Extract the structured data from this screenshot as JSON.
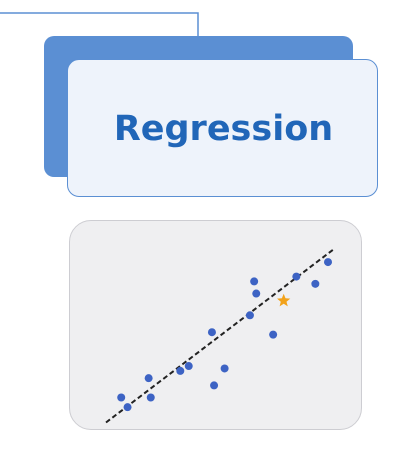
{
  "diagram": {
    "title": "Regression",
    "colors": {
      "accent": "#5b8fd3",
      "title_text": "#2166b8",
      "card_fill": "#eef3fb",
      "point": "#3d63c4",
      "highlight": "#f2a21a",
      "trend_line": "#222222"
    }
  },
  "chart_data": {
    "type": "scatter",
    "title": "",
    "xlabel": "",
    "ylabel": "",
    "xlim": [
      0,
      10
    ],
    "ylim": [
      0,
      10
    ],
    "grid": false,
    "series": [
      {
        "points": [
          {
            "x": 0.2,
            "y": 0.6
          },
          {
            "x": 0.5,
            "y": 0.2
          },
          {
            "x": 1.5,
            "y": 1.4
          },
          {
            "x": 1.6,
            "y": 0.6
          },
          {
            "x": 3.0,
            "y": 1.7
          },
          {
            "x": 3.4,
            "y": 1.9
          },
          {
            "x": 4.6,
            "y": 1.1
          },
          {
            "x": 5.1,
            "y": 1.8
          },
          {
            "x": 4.5,
            "y": 3.3
          },
          {
            "x": 6.3,
            "y": 4.0
          },
          {
            "x": 6.5,
            "y": 5.4
          },
          {
            "x": 6.6,
            "y": 4.9
          },
          {
            "x": 7.4,
            "y": 3.2
          },
          {
            "x": 8.5,
            "y": 5.6
          },
          {
            "x": 9.4,
            "y": 5.3
          },
          {
            "x": 10.0,
            "y": 6.2
          }
        ]
      }
    ],
    "highlight_point": {
      "x": 7.9,
      "y": 4.6
    },
    "trend_line": {
      "x1": 0,
      "y1": -0.6,
      "x2": 10,
      "y2": 6.7
    }
  }
}
